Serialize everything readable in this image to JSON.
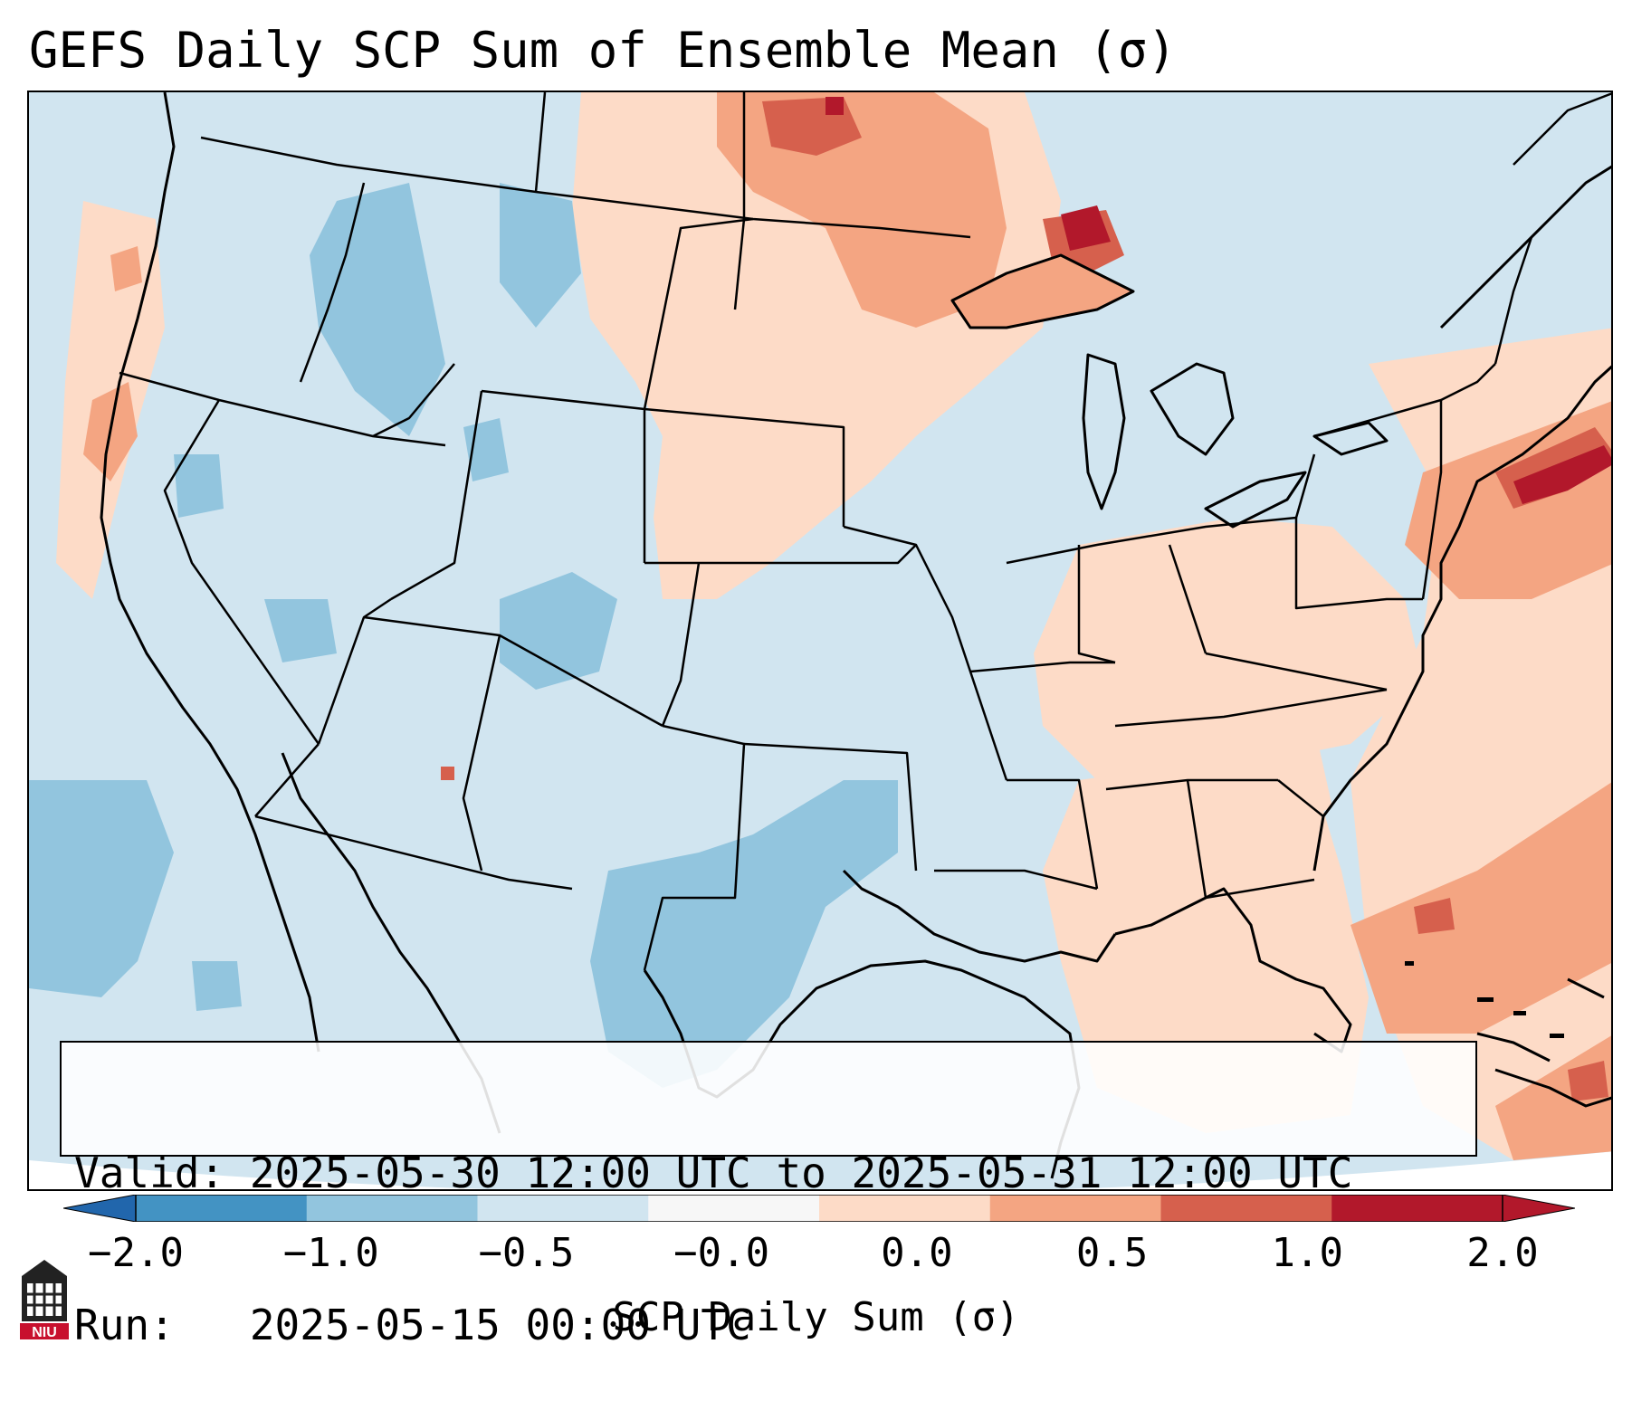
{
  "title": "GEFS Daily SCP Sum of Ensemble Mean (σ)",
  "info": {
    "valid": "Valid: 2025-05-30 12:00 UTC to 2025-05-31 12:00 UTC",
    "run": "Run:   2025-05-15 00:00 UTC"
  },
  "colorbar": {
    "label": "SCP Daily Sum (σ)",
    "ticks": [
      "−2.0",
      "−1.0",
      "−0.5",
      "−0.0",
      "0.0",
      "0.5",
      "1.0",
      "2.0"
    ],
    "colors": [
      "#4393c3",
      "#92c5de",
      "#d1e5f0",
      "#f7f7f7",
      "#fddbc7",
      "#f4a582",
      "#d6604d",
      "#b2182b"
    ],
    "extend_low": "#2166ac",
    "extend_high": "#b2182b"
  },
  "logo": {
    "text": "NIU",
    "color": "#c8102e"
  }
}
